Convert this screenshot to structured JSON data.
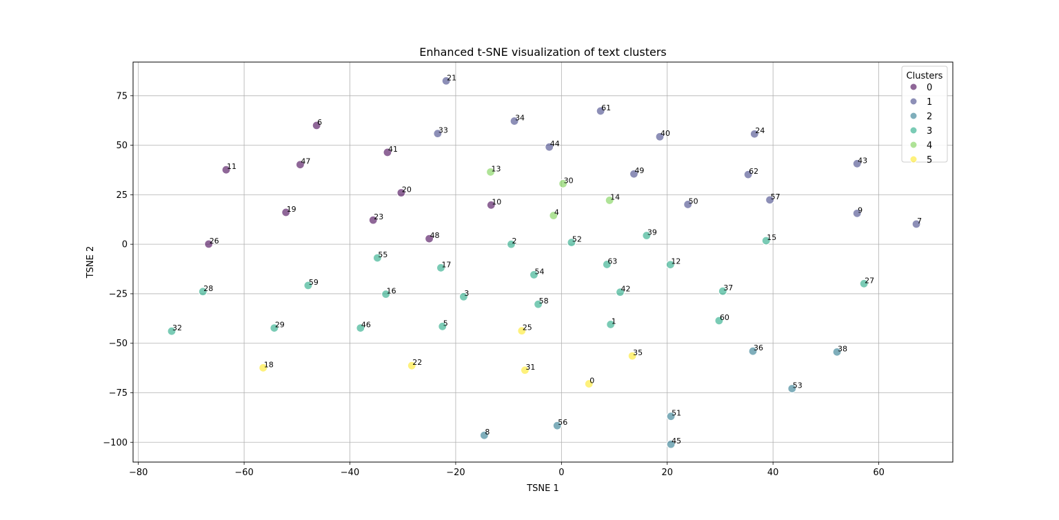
{
  "chart_data": {
    "type": "scatter",
    "title": "Enhanced t-SNE visualization of text clusters",
    "xlabel": "TSNE 1",
    "ylabel": "TSNE 2",
    "xlim": [
      -81,
      74
    ],
    "ylim": [
      -110,
      92
    ],
    "xticks": [
      -80,
      -60,
      -40,
      -20,
      0,
      20,
      40,
      60
    ],
    "yticks": [
      -100,
      -75,
      -50,
      -25,
      0,
      25,
      50,
      75
    ],
    "grid": true,
    "legend": {
      "title": "Clusters",
      "position": "top-right",
      "entries": [
        "0",
        "1",
        "2",
        "3",
        "4",
        "5"
      ]
    },
    "cluster_colors": [
      "#440154",
      "#414487",
      "#2a788e",
      "#22a884",
      "#7ad151",
      "#fde725"
    ],
    "points": [
      {
        "label": "0",
        "x": 5.2,
        "y": -70.5,
        "cluster": 5
      },
      {
        "label": "1",
        "x": 9.3,
        "y": -40.5,
        "cluster": 3
      },
      {
        "label": "2",
        "x": -9.5,
        "y": 0,
        "cluster": 3
      },
      {
        "label": "3",
        "x": -18.5,
        "y": -26.5,
        "cluster": 3
      },
      {
        "label": "4",
        "x": -1.5,
        "y": 14.5,
        "cluster": 4
      },
      {
        "label": "5",
        "x": -22.5,
        "y": -41.5,
        "cluster": 3
      },
      {
        "label": "6",
        "x": -46.3,
        "y": 60,
        "cluster": 0
      },
      {
        "label": "7",
        "x": 67.1,
        "y": 10.2,
        "cluster": 1
      },
      {
        "label": "8",
        "x": -14.6,
        "y": -96.5,
        "cluster": 2
      },
      {
        "label": "9",
        "x": 55.9,
        "y": 15.6,
        "cluster": 1
      },
      {
        "label": "10",
        "x": -13.3,
        "y": 19.8,
        "cluster": 0
      },
      {
        "label": "11",
        "x": -63.4,
        "y": 37.6,
        "cluster": 0
      },
      {
        "label": "12",
        "x": 20.6,
        "y": -10.3,
        "cluster": 3
      },
      {
        "label": "13",
        "x": -13.4,
        "y": 36.5,
        "cluster": 4
      },
      {
        "label": "14",
        "x": 9.1,
        "y": 22.2,
        "cluster": 4
      },
      {
        "label": "15",
        "x": 38.7,
        "y": 1.8,
        "cluster": 3
      },
      {
        "label": "16",
        "x": -33.2,
        "y": -25.2,
        "cluster": 3
      },
      {
        "label": "17",
        "x": -22.8,
        "y": -11.9,
        "cluster": 3
      },
      {
        "label": "18",
        "x": -56.4,
        "y": -62.4,
        "cluster": 5
      },
      {
        "label": "19",
        "x": -52.1,
        "y": 16.1,
        "cluster": 0
      },
      {
        "label": "20",
        "x": -30.3,
        "y": 26.0,
        "cluster": 0
      },
      {
        "label": "21",
        "x": -21.8,
        "y": 82.5,
        "cluster": 1
      },
      {
        "label": "22",
        "x": -28.3,
        "y": -61.3,
        "cluster": 5
      },
      {
        "label": "23",
        "x": -35.6,
        "y": 12.2,
        "cluster": 0
      },
      {
        "label": "24",
        "x": 36.5,
        "y": 55.7,
        "cluster": 1
      },
      {
        "label": "25",
        "x": -7.5,
        "y": -43.7,
        "cluster": 5
      },
      {
        "label": "26",
        "x": -66.7,
        "y": 0.1,
        "cluster": 0
      },
      {
        "label": "27",
        "x": 57.2,
        "y": -19.9,
        "cluster": 3
      },
      {
        "label": "28",
        "x": -67.8,
        "y": -23.9,
        "cluster": 3
      },
      {
        "label": "29",
        "x": -54.3,
        "y": -42.3,
        "cluster": 3
      },
      {
        "label": "30",
        "x": 0.3,
        "y": 30.6,
        "cluster": 4
      },
      {
        "label": "31",
        "x": -6.9,
        "y": -63.6,
        "cluster": 5
      },
      {
        "label": "32",
        "x": -73.7,
        "y": -43.9,
        "cluster": 3
      },
      {
        "label": "33",
        "x": -23.4,
        "y": 55.9,
        "cluster": 1
      },
      {
        "label": "34",
        "x": -8.9,
        "y": 62.2,
        "cluster": 1
      },
      {
        "label": "35",
        "x": 13.4,
        "y": -56.4,
        "cluster": 5
      },
      {
        "label": "36",
        "x": 36.2,
        "y": -54.0,
        "cluster": 2
      },
      {
        "label": "37",
        "x": 30.5,
        "y": -23.7,
        "cluster": 3
      },
      {
        "label": "38",
        "x": 52.1,
        "y": -54.4,
        "cluster": 2
      },
      {
        "label": "39",
        "x": 16.1,
        "y": 4.4,
        "cluster": 3
      },
      {
        "label": "40",
        "x": 18.6,
        "y": 54.3,
        "cluster": 1
      },
      {
        "label": "41",
        "x": -32.9,
        "y": 46.4,
        "cluster": 0
      },
      {
        "label": "42",
        "x": 11.1,
        "y": -24.2,
        "cluster": 3
      },
      {
        "label": "43",
        "x": 55.9,
        "y": 40.7,
        "cluster": 1
      },
      {
        "label": "44",
        "x": -2.3,
        "y": 49.1,
        "cluster": 1
      },
      {
        "label": "45",
        "x": 20.7,
        "y": -101.0,
        "cluster": 2
      },
      {
        "label": "46",
        "x": -38.0,
        "y": -42.3,
        "cluster": 3
      },
      {
        "label": "47",
        "x": -49.4,
        "y": 40.2,
        "cluster": 0
      },
      {
        "label": "48",
        "x": -25.0,
        "y": 2.8,
        "cluster": 0
      },
      {
        "label": "49",
        "x": 13.7,
        "y": 35.5,
        "cluster": 1
      },
      {
        "label": "50",
        "x": 23.9,
        "y": 20.1,
        "cluster": 1
      },
      {
        "label": "51",
        "x": 20.7,
        "y": -86.9,
        "cluster": 2
      },
      {
        "label": "52",
        "x": 1.9,
        "y": 0.9,
        "cluster": 3
      },
      {
        "label": "53",
        "x": 43.6,
        "y": -72.9,
        "cluster": 2
      },
      {
        "label": "54",
        "x": -5.2,
        "y": -15.4,
        "cluster": 3
      },
      {
        "label": "55",
        "x": -34.8,
        "y": -6.9,
        "cluster": 3
      },
      {
        "label": "56",
        "x": -0.8,
        "y": -91.6,
        "cluster": 2
      },
      {
        "label": "57",
        "x": 39.4,
        "y": 22.4,
        "cluster": 1
      },
      {
        "label": "58",
        "x": -4.4,
        "y": -30.3,
        "cluster": 3
      },
      {
        "label": "59",
        "x": -47.9,
        "y": -20.8,
        "cluster": 3
      },
      {
        "label": "60",
        "x": 29.8,
        "y": -38.6,
        "cluster": 3
      },
      {
        "label": "61",
        "x": 7.4,
        "y": 67.3,
        "cluster": 1
      },
      {
        "label": "62",
        "x": 35.3,
        "y": 35.2,
        "cluster": 1
      },
      {
        "label": "63",
        "x": 8.6,
        "y": -10.2,
        "cluster": 3
      }
    ]
  }
}
